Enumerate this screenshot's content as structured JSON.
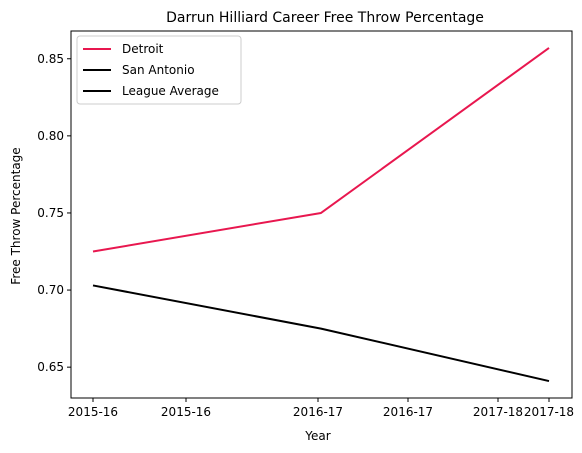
{
  "chart_data": {
    "type": "line",
    "title": "Darrun Hilliard Career Free Throw Percentage",
    "xlabel": "Year",
    "ylabel": "Free Throw Percentage",
    "x_ticks": [
      "2015-16",
      "2015-16",
      "2016-17",
      "2016-17",
      "2017-18",
      "2017-18"
    ],
    "x_range": [
      0,
      1
    ],
    "ylim": [
      0.63,
      0.868
    ],
    "y_ticks": [
      0.65,
      0.7,
      0.75,
      0.8,
      0.85
    ],
    "y_tick_labels": [
      "0.65",
      "0.70",
      "0.75",
      "0.80",
      "0.85"
    ],
    "grid": false,
    "legend_position": "top-left",
    "series": [
      {
        "name": "Detroit",
        "color": "#e8174f",
        "x": [
          0,
          0.5,
          1
        ],
        "y": [
          0.725,
          0.75,
          0.857
        ]
      },
      {
        "name": "San Antonio",
        "color": "#000000",
        "x": [
          0,
          0.5,
          1
        ],
        "y": [
          0.703,
          0.675,
          0.641
        ]
      },
      {
        "name": "League Average",
        "color": "#000000",
        "x": [],
        "y": []
      }
    ]
  }
}
